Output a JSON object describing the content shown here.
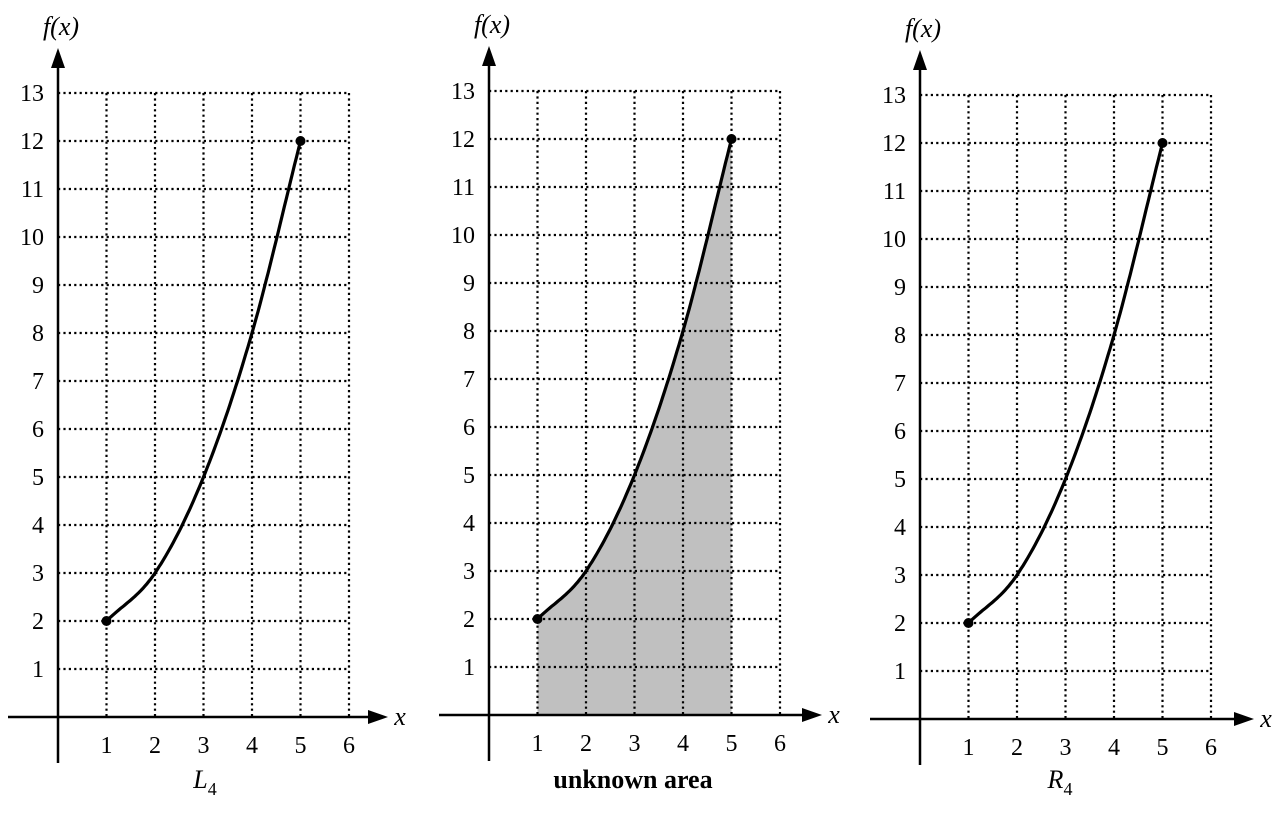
{
  "colors": {
    "shade": "#c0c0c0",
    "ink": "#000000"
  },
  "chart_data": [
    {
      "type": "line",
      "ylabel": "f(x)",
      "xlabel": "x",
      "xlim": [
        0,
        6
      ],
      "ylim": [
        0,
        13
      ],
      "x_ticks": [
        "1",
        "2",
        "3",
        "4",
        "5",
        "6"
      ],
      "y_ticks": [
        "1",
        "2",
        "3",
        "4",
        "5",
        "6",
        "7",
        "8",
        "9",
        "10",
        "11",
        "12",
        "13"
      ],
      "grid": true,
      "series": [
        {
          "x": [
            1,
            2,
            3,
            4,
            5
          ],
          "y": [
            2,
            3,
            5,
            8,
            12
          ],
          "endpoints": [
            [
              1,
              2
            ],
            [
              5,
              12
            ]
          ]
        }
      ],
      "shaded_region": null,
      "caption": {
        "main": "L",
        "sub": "4",
        "style": "italic"
      }
    },
    {
      "type": "area",
      "ylabel": "f(x)",
      "xlabel": "x",
      "xlim": [
        0,
        6
      ],
      "ylim": [
        0,
        13
      ],
      "x_ticks": [
        "1",
        "2",
        "3",
        "4",
        "5",
        "6"
      ],
      "y_ticks": [
        "1",
        "2",
        "3",
        "4",
        "5",
        "6",
        "7",
        "8",
        "9",
        "10",
        "11",
        "12",
        "13"
      ],
      "grid": true,
      "series": [
        {
          "x": [
            1,
            2,
            3,
            4,
            5
          ],
          "y": [
            2,
            3,
            5,
            8,
            12
          ],
          "endpoints": [
            [
              1,
              2
            ],
            [
              5,
              12
            ]
          ]
        }
      ],
      "shaded_region": {
        "from": 1,
        "to": 5
      },
      "caption": {
        "main": "unknown area",
        "sub": "",
        "style": "bold"
      }
    },
    {
      "type": "line",
      "ylabel": "f(x)",
      "xlabel": "x",
      "xlim": [
        0,
        6
      ],
      "ylim": [
        0,
        13
      ],
      "x_ticks": [
        "1",
        "2",
        "3",
        "4",
        "5",
        "6"
      ],
      "y_ticks": [
        "1",
        "2",
        "3",
        "4",
        "5",
        "6",
        "7",
        "8",
        "9",
        "10",
        "11",
        "12",
        "13"
      ],
      "grid": true,
      "series": [
        {
          "x": [
            1,
            2,
            3,
            4,
            5
          ],
          "y": [
            2,
            3,
            5,
            8,
            12
          ],
          "endpoints": [
            [
              1,
              2
            ],
            [
              5,
              12
            ]
          ]
        }
      ],
      "shaded_region": null,
      "caption": {
        "main": "R",
        "sub": "4",
        "style": "italic"
      }
    }
  ]
}
